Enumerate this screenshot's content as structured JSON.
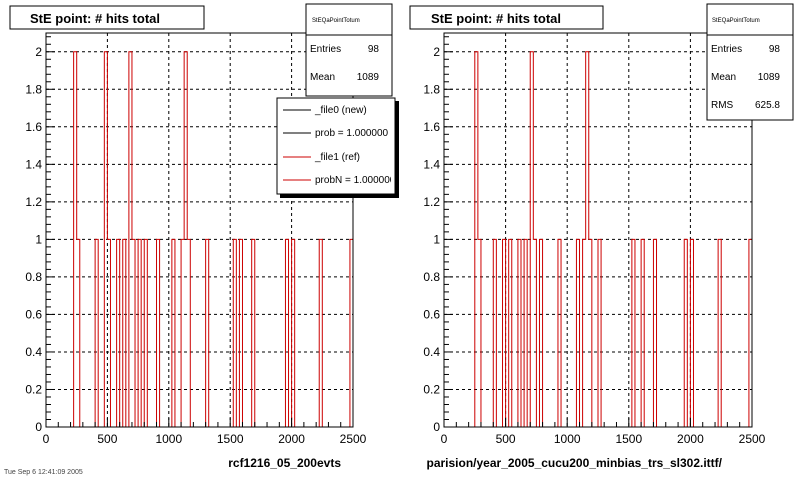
{
  "colors": {
    "ref_line": "#cc0000",
    "new_line": "#000000",
    "grid": "#000000",
    "frame": "#000000"
  },
  "footer": {
    "timestamp": "Tue Sep 6 12:41:09 2005",
    "left_label": "rcf1216_05_200evts",
    "right_label": "parision/year_2005_cucu200_minbias_trs_sl302.ittf/"
  },
  "chart_data": [
    {
      "type": "line",
      "step": true,
      "title": "StE point: # hits total",
      "xlabel": "",
      "ylabel": "",
      "xlim": [
        0,
        2500
      ],
      "ylim": [
        0,
        2.1
      ],
      "grid": true,
      "x_ticks": [
        0,
        500,
        1000,
        1500,
        2000,
        2500
      ],
      "y_ticks": [
        0,
        0.2,
        0.4,
        0.6,
        0.8,
        1,
        1.2,
        1.4,
        1.6,
        1.8,
        2
      ],
      "y_tick_labels": [
        "0",
        "0.2",
        "0.4",
        "0.6",
        "0.8",
        "1",
        "1.2",
        "1.4",
        "1.6",
        "1.8",
        "2"
      ],
      "bins": {
        "start": 0,
        "width": 25
      },
      "series": [
        {
          "color": "#cc0000",
          "points": [
            [
              0,
              0
            ],
            [
              225,
              0
            ],
            [
              225,
              2
            ],
            [
              250,
              2
            ],
            [
              250,
              1
            ],
            [
              275,
              1
            ],
            [
              275,
              0
            ],
            [
              400,
              0
            ],
            [
              400,
              1
            ],
            [
              425,
              1
            ],
            [
              425,
              0
            ],
            [
              475,
              0
            ],
            [
              475,
              2
            ],
            [
              500,
              2
            ],
            [
              500,
              1
            ],
            [
              525,
              1
            ],
            [
              525,
              0
            ],
            [
              575,
              0
            ],
            [
              575,
              1
            ],
            [
              600,
              1
            ],
            [
              600,
              0
            ],
            [
              625,
              0
            ],
            [
              625,
              1
            ],
            [
              650,
              1
            ],
            [
              650,
              0
            ],
            [
              675,
              0
            ],
            [
              675,
              2
            ],
            [
              700,
              2
            ],
            [
              700,
              1
            ],
            [
              725,
              1
            ],
            [
              725,
              0
            ],
            [
              750,
              0
            ],
            [
              750,
              1
            ],
            [
              775,
              1
            ],
            [
              775,
              0
            ],
            [
              800,
              0
            ],
            [
              800,
              1
            ],
            [
              825,
              1
            ],
            [
              825,
              0
            ],
            [
              900,
              0
            ],
            [
              900,
              1
            ],
            [
              925,
              1
            ],
            [
              925,
              0
            ],
            [
              1025,
              0
            ],
            [
              1025,
              1
            ],
            [
              1050,
              1
            ],
            [
              1050,
              0
            ],
            [
              1100,
              0
            ],
            [
              1100,
              1
            ],
            [
              1125,
              1
            ],
            [
              1125,
              2
            ],
            [
              1150,
              2
            ],
            [
              1150,
              1
            ],
            [
              1175,
              1
            ],
            [
              1175,
              0
            ],
            [
              1300,
              0
            ],
            [
              1300,
              1
            ],
            [
              1325,
              1
            ],
            [
              1325,
              0
            ],
            [
              1525,
              0
            ],
            [
              1525,
              1
            ],
            [
              1550,
              1
            ],
            [
              1550,
              0
            ],
            [
              1575,
              0
            ],
            [
              1575,
              1
            ],
            [
              1600,
              1
            ],
            [
              1600,
              0
            ],
            [
              1675,
              0
            ],
            [
              1675,
              1
            ],
            [
              1700,
              1
            ],
            [
              1700,
              0
            ],
            [
              1950,
              0
            ],
            [
              1950,
              1
            ],
            [
              1975,
              1
            ],
            [
              1975,
              0
            ],
            [
              2000,
              0
            ],
            [
              2000,
              1
            ],
            [
              2025,
              1
            ],
            [
              2025,
              0
            ],
            [
              2225,
              0
            ],
            [
              2225,
              1
            ],
            [
              2250,
              1
            ],
            [
              2250,
              0
            ],
            [
              2475,
              0
            ],
            [
              2475,
              1
            ],
            [
              2500,
              1
            ],
            [
              2500,
              0
            ]
          ]
        }
      ],
      "stats": {
        "header": "StEQaPointTotum",
        "rows": [
          {
            "label": "Entries",
            "value": "98"
          },
          {
            "label": "Mean",
            "value": "1089"
          }
        ]
      },
      "legend": {
        "placement": "top-right",
        "entries": [
          {
            "name": "_file0 (new)",
            "color": "#000000"
          },
          {
            "name": "prob = 1.000000",
            "color": "#000000"
          },
          {
            "name": "_file1 (ref)",
            "color": "#cc0000"
          },
          {
            "name": "probN = 1.000000",
            "color": "#cc0000"
          }
        ]
      }
    },
    {
      "type": "line",
      "step": true,
      "title": "StE point: # hits total",
      "xlabel": "",
      "ylabel": "",
      "xlim": [
        0,
        2500
      ],
      "ylim": [
        0,
        2.1
      ],
      "grid": true,
      "x_ticks": [
        0,
        500,
        1000,
        1500,
        2000,
        2500
      ],
      "y_ticks": [
        0,
        0.2,
        0.4,
        0.6,
        0.8,
        1,
        1.2,
        1.4,
        1.6,
        1.8,
        2
      ],
      "y_tick_labels": [
        "0",
        "0.2",
        "0.4",
        "0.6",
        "0.8",
        "1",
        "1.2",
        "1.4",
        "1.6",
        "1.8",
        "2"
      ],
      "bins": {
        "start": 0,
        "width": 25
      },
      "series": [
        {
          "color": "#cc0000",
          "points": [
            [
              0,
              0
            ],
            [
              250,
              0
            ],
            [
              250,
              2
            ],
            [
              275,
              2
            ],
            [
              275,
              1
            ],
            [
              300,
              1
            ],
            [
              300,
              0
            ],
            [
              400,
              0
            ],
            [
              400,
              1
            ],
            [
              425,
              1
            ],
            [
              425,
              0
            ],
            [
              475,
              0
            ],
            [
              475,
              1
            ],
            [
              500,
              1
            ],
            [
              500,
              0
            ],
            [
              525,
              0
            ],
            [
              525,
              1
            ],
            [
              550,
              1
            ],
            [
              550,
              0
            ],
            [
              600,
              0
            ],
            [
              600,
              1
            ],
            [
              625,
              1
            ],
            [
              625,
              0
            ],
            [
              650,
              0
            ],
            [
              650,
              1
            ],
            [
              675,
              1
            ],
            [
              675,
              0
            ],
            [
              700,
              0
            ],
            [
              700,
              2
            ],
            [
              725,
              2
            ],
            [
              725,
              1
            ],
            [
              750,
              1
            ],
            [
              750,
              0
            ],
            [
              775,
              0
            ],
            [
              775,
              1
            ],
            [
              800,
              1
            ],
            [
              800,
              0
            ],
            [
              925,
              0
            ],
            [
              925,
              1
            ],
            [
              950,
              1
            ],
            [
              950,
              0
            ],
            [
              1075,
              0
            ],
            [
              1075,
              1
            ],
            [
              1100,
              1
            ],
            [
              1100,
              0
            ],
            [
              1125,
              0
            ],
            [
              1125,
              1
            ],
            [
              1150,
              1
            ],
            [
              1150,
              2
            ],
            [
              1175,
              2
            ],
            [
              1175,
              1
            ],
            [
              1200,
              1
            ],
            [
              1200,
              0
            ],
            [
              1250,
              0
            ],
            [
              1250,
              1
            ],
            [
              1275,
              1
            ],
            [
              1275,
              0
            ],
            [
              1525,
              0
            ],
            [
              1525,
              1
            ],
            [
              1550,
              1
            ],
            [
              1550,
              0
            ],
            [
              1600,
              0
            ],
            [
              1600,
              1
            ],
            [
              1625,
              1
            ],
            [
              1625,
              0
            ],
            [
              1700,
              0
            ],
            [
              1700,
              1
            ],
            [
              1725,
              1
            ],
            [
              1725,
              0
            ],
            [
              1950,
              0
            ],
            [
              1950,
              1
            ],
            [
              1975,
              1
            ],
            [
              1975,
              0
            ],
            [
              2000,
              0
            ],
            [
              2000,
              1
            ],
            [
              2025,
              1
            ],
            [
              2025,
              0
            ],
            [
              2225,
              0
            ],
            [
              2225,
              1
            ],
            [
              2250,
              1
            ],
            [
              2250,
              0
            ],
            [
              2475,
              0
            ],
            [
              2475,
              1
            ],
            [
              2500,
              1
            ],
            [
              2500,
              0
            ]
          ]
        }
      ],
      "stats": {
        "header": "StEQaPointTotum",
        "rows": [
          {
            "label": "Entries",
            "value": "98"
          },
          {
            "label": "Mean",
            "value": "1089"
          },
          {
            "label": "RMS",
            "value": "625.8"
          }
        ]
      }
    }
  ]
}
